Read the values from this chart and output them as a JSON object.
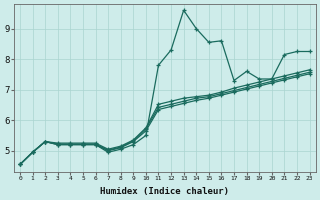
{
  "xlabel": "Humidex (Indice chaleur)",
  "background_color": "#ceecea",
  "line_color": "#1a6b5e",
  "grid_color": "#aad4d0",
  "x_ticks": [
    0,
    1,
    2,
    3,
    4,
    5,
    6,
    7,
    8,
    9,
    10,
    11,
    12,
    13,
    14,
    15,
    16,
    17,
    18,
    19,
    20,
    21,
    22,
    23
  ],
  "y_ticks": [
    5,
    6,
    7,
    8,
    9
  ],
  "xlim": [
    -0.5,
    23.5
  ],
  "ylim": [
    4.3,
    9.8
  ],
  "series": [
    [
      4.55,
      4.95,
      5.3,
      5.2,
      5.2,
      5.2,
      5.2,
      4.95,
      5.05,
      5.2,
      5.5,
      7.8,
      8.3,
      9.6,
      9.0,
      8.55,
      8.6,
      7.3,
      7.6,
      7.35,
      7.35,
      8.15,
      8.25,
      8.25
    ],
    [
      4.55,
      4.95,
      5.3,
      5.2,
      5.2,
      5.2,
      5.2,
      5.0,
      5.1,
      5.3,
      5.65,
      6.35,
      6.45,
      6.55,
      6.65,
      6.72,
      6.82,
      6.92,
      7.02,
      7.12,
      7.22,
      7.32,
      7.42,
      7.52
    ],
    [
      4.55,
      4.95,
      5.3,
      5.22,
      5.22,
      5.22,
      5.22,
      5.02,
      5.12,
      5.32,
      5.72,
      6.42,
      6.52,
      6.62,
      6.72,
      6.77,
      6.87,
      6.97,
      7.07,
      7.17,
      7.27,
      7.37,
      7.47,
      7.57
    ],
    [
      4.55,
      4.95,
      5.3,
      5.25,
      5.25,
      5.25,
      5.25,
      5.05,
      5.15,
      5.35,
      5.75,
      6.52,
      6.62,
      6.72,
      6.77,
      6.82,
      6.92,
      7.05,
      7.15,
      7.25,
      7.35,
      7.45,
      7.55,
      7.65
    ]
  ]
}
